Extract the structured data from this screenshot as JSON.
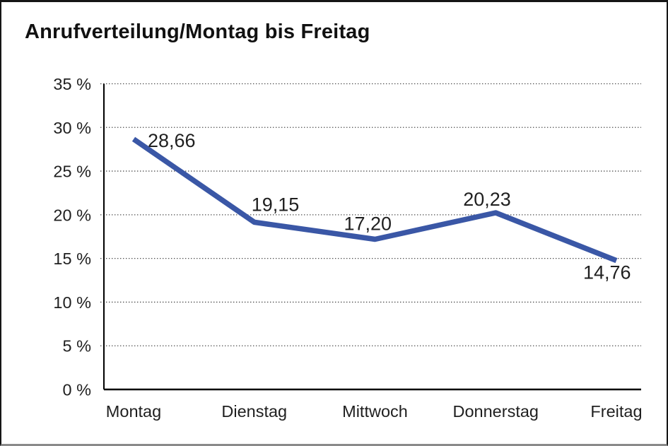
{
  "title": "Anrufverteilung/Montag bis Freitag",
  "colors": {
    "line": "#3A57A6",
    "text": "#1F1F1F",
    "grid": "#4d4d4d",
    "axis": "#000000",
    "background": "#FFFFFF",
    "frame_border": "#151515"
  },
  "chart_data": {
    "type": "line",
    "title": "Anrufverteilung/Montag bis Freitag",
    "categories": [
      "Montag",
      "Dienstag",
      "Mittwoch",
      "Donnerstag",
      "Freitag"
    ],
    "values": [
      28.66,
      19.15,
      17.2,
      20.23,
      14.76
    ],
    "point_labels": [
      "28,66",
      "19,15",
      "17,20",
      "20,23",
      "14,76"
    ],
    "series_name": "Anrufverteilung",
    "xlabel": "",
    "ylabel": "",
    "ylim": [
      0,
      35
    ],
    "ytick_step": 5,
    "ytick_labels": [
      "0 %",
      "5 %",
      "10 %",
      "15 %",
      "20 %",
      "25 %",
      "30 %",
      "35 %"
    ],
    "grid": "horizontal dotted",
    "legend": "none",
    "number_format": "de-DE comma decimals"
  }
}
